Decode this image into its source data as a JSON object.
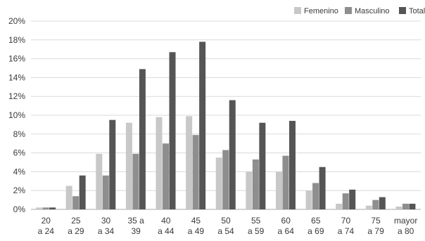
{
  "chart_data": {
    "type": "bar",
    "title": "",
    "xlabel": "",
    "ylabel": "",
    "ylim": [
      0,
      20
    ],
    "yticks": [
      "0%",
      "2%",
      "4%",
      "6%",
      "8%",
      "10%",
      "12%",
      "14%",
      "16%",
      "18%",
      "20%"
    ],
    "grid": true,
    "legend_position": "top-right",
    "categories": [
      [
        "20",
        "a 24"
      ],
      [
        "25",
        "a 29"
      ],
      [
        "30",
        "a 34"
      ],
      [
        "35 a",
        "39"
      ],
      [
        "40",
        "a 44"
      ],
      [
        "45",
        "a 49"
      ],
      [
        "50",
        "a 54"
      ],
      [
        "55",
        "a 59"
      ],
      [
        "60",
        "a 64"
      ],
      [
        "65",
        "a 69"
      ],
      [
        "70",
        "a 74"
      ],
      [
        "75",
        "a 79"
      ],
      [
        "mayor",
        "a 80"
      ]
    ],
    "series": [
      {
        "name": "Femenino",
        "color": "#c8c8c8",
        "values": [
          0.2,
          2.5,
          5.9,
          9.2,
          9.8,
          9.9,
          5.5,
          4.0,
          4.0,
          2.0,
          0.6,
          0.4,
          0.3
        ]
      },
      {
        "name": "Masculino",
        "color": "#8e8e8e",
        "values": [
          0.2,
          1.4,
          3.6,
          5.9,
          7.0,
          7.9,
          6.3,
          5.3,
          5.7,
          2.8,
          1.7,
          1.0,
          0.6
        ]
      },
      {
        "name": "Total",
        "color": "#555555",
        "values": [
          0.2,
          3.6,
          9.5,
          14.9,
          16.7,
          17.8,
          11.6,
          9.2,
          9.4,
          4.5,
          2.1,
          1.3,
          0.6
        ]
      }
    ]
  }
}
